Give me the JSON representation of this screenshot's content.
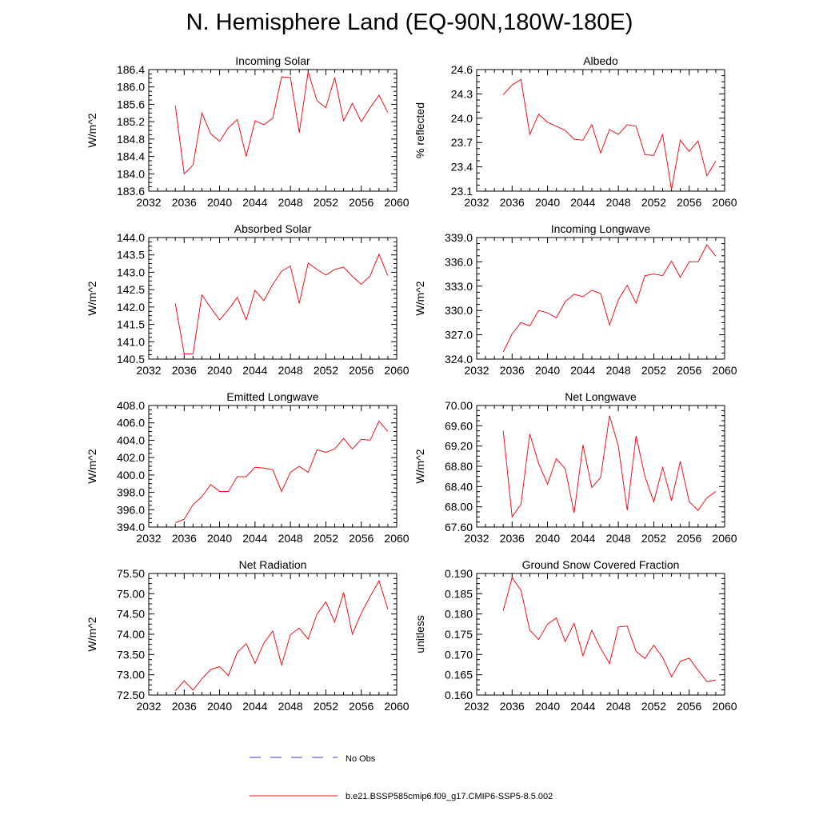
{
  "page": {
    "title": "N. Hemisphere Land (EQ-90N,180W-180E)"
  },
  "colors": {
    "model_line": "#e8141c",
    "obs_line": "#3a3ad0",
    "axis": "#000000"
  },
  "legend": {
    "items": [
      {
        "label": "No Obs",
        "style": "dashed",
        "color": "#3a3ad0"
      },
      {
        "label": "b.e21.BSSP585cmip6.f09_g17.CMIP6-SSP5-8.5.002",
        "style": "solid",
        "color": "#e8141c"
      }
    ]
  },
  "chart_data": [
    {
      "type": "line",
      "title": "Incoming Solar",
      "xlabel": "",
      "ylabel": "W/m^2",
      "xlim": [
        2032,
        2060
      ],
      "xticks": [
        2032,
        2036,
        2040,
        2044,
        2048,
        2052,
        2056,
        2060
      ],
      "ylim": [
        183.6,
        186.4
      ],
      "yticks": [
        "183.6",
        "184.0",
        "184.4",
        "184.8",
        "185.2",
        "185.6",
        "186.0",
        "186.4"
      ],
      "grid": false,
      "x": [
        2035,
        2036,
        2037,
        2038,
        2039,
        2040,
        2041,
        2042,
        2043,
        2044,
        2045,
        2046,
        2047,
        2048,
        2049,
        2050,
        2051,
        2052,
        2053,
        2054,
        2055,
        2056,
        2057,
        2058,
        2059
      ],
      "series": [
        {
          "values": [
            185.57,
            184.0,
            184.2,
            185.4,
            184.92,
            184.75,
            185.06,
            185.25,
            184.4,
            185.22,
            185.13,
            185.28,
            186.23,
            186.22,
            184.95,
            186.35,
            185.68,
            185.52,
            186.22,
            185.22,
            185.62,
            185.2,
            185.52,
            185.81,
            185.41
          ]
        }
      ]
    },
    {
      "type": "line",
      "title": "Albedo",
      "xlabel": "",
      "ylabel": "% reflected",
      "xlim": [
        2032,
        2060
      ],
      "xticks": [
        2032,
        2036,
        2040,
        2044,
        2048,
        2052,
        2056,
        2060
      ],
      "ylim": [
        23.1,
        24.6
      ],
      "yticks": [
        "23.1",
        "23.4",
        "23.7",
        "24.0",
        "24.3",
        "24.6"
      ],
      "grid": false,
      "x": [
        2035,
        2036,
        2037,
        2038,
        2039,
        2040,
        2041,
        2042,
        2043,
        2044,
        2045,
        2046,
        2047,
        2048,
        2049,
        2050,
        2051,
        2052,
        2053,
        2054,
        2055,
        2056,
        2057,
        2058,
        2059
      ],
      "series": [
        {
          "values": [
            24.29,
            24.41,
            24.48,
            23.8,
            24.05,
            23.95,
            23.9,
            23.85,
            23.74,
            23.73,
            23.92,
            23.57,
            23.86,
            23.8,
            23.92,
            23.9,
            23.55,
            23.54,
            23.8,
            23.12,
            23.73,
            23.59,
            23.72,
            23.29,
            23.47
          ]
        }
      ]
    },
    {
      "type": "line",
      "title": "Absorbed Solar",
      "xlabel": "",
      "ylabel": "W/m^2",
      "xlim": [
        2032,
        2060
      ],
      "xticks": [
        2032,
        2036,
        2040,
        2044,
        2048,
        2052,
        2056,
        2060
      ],
      "ylim": [
        140.5,
        144.0
      ],
      "yticks": [
        "140.5",
        "141.0",
        "141.5",
        "142.0",
        "142.5",
        "143.0",
        "143.5",
        "144.0"
      ],
      "grid": false,
      "x": [
        2035,
        2036,
        2037,
        2038,
        2039,
        2040,
        2041,
        2042,
        2043,
        2044,
        2045,
        2046,
        2047,
        2048,
        2049,
        2050,
        2051,
        2052,
        2053,
        2054,
        2055,
        2056,
        2057,
        2058,
        2059
      ],
      "series": [
        {
          "values": [
            142.1,
            140.65,
            140.65,
            142.35,
            141.98,
            141.63,
            141.92,
            142.28,
            141.63,
            142.48,
            142.18,
            142.65,
            143.03,
            143.18,
            142.1,
            143.27,
            143.08,
            142.92,
            143.08,
            143.15,
            142.88,
            142.65,
            142.9,
            143.52,
            142.9
          ]
        }
      ]
    },
    {
      "type": "line",
      "title": "Incoming Longwave",
      "xlabel": "",
      "ylabel": "W/m^2",
      "xlim": [
        2032,
        2060
      ],
      "xticks": [
        2032,
        2036,
        2040,
        2044,
        2048,
        2052,
        2056,
        2060
      ],
      "ylim": [
        324.0,
        339.0
      ],
      "yticks": [
        "324.0",
        "327.0",
        "330.0",
        "333.0",
        "336.0",
        "339.0"
      ],
      "grid": false,
      "x": [
        2035,
        2036,
        2037,
        2038,
        2039,
        2040,
        2041,
        2042,
        2043,
        2044,
        2045,
        2046,
        2047,
        2048,
        2049,
        2050,
        2051,
        2052,
        2053,
        2054,
        2055,
        2056,
        2057,
        2058,
        2059
      ],
      "series": [
        {
          "values": [
            324.9,
            327.1,
            328.5,
            328.1,
            330.0,
            329.7,
            329.1,
            331.1,
            332.0,
            331.7,
            332.5,
            332.1,
            328.2,
            331.3,
            333.1,
            330.9,
            334.3,
            334.5,
            334.3,
            336.1,
            334.1,
            336.0,
            336.0,
            338.1,
            336.7
          ]
        }
      ]
    },
    {
      "type": "line",
      "title": "Emitted Longwave",
      "xlabel": "",
      "ylabel": "W/m^2",
      "xlim": [
        2032,
        2060
      ],
      "xticks": [
        2032,
        2036,
        2040,
        2044,
        2048,
        2052,
        2056,
        2060
      ],
      "ylim": [
        394.0,
        408.0
      ],
      "yticks": [
        "394.0",
        "396.0",
        "398.0",
        "400.0",
        "402.0",
        "404.0",
        "406.0",
        "408.0"
      ],
      "grid": false,
      "x": [
        2035,
        2036,
        2037,
        2038,
        2039,
        2040,
        2041,
        2042,
        2043,
        2044,
        2045,
        2046,
        2047,
        2048,
        2049,
        2050,
        2051,
        2052,
        2053,
        2054,
        2055,
        2056,
        2057,
        2058,
        2059
      ],
      "series": [
        {
          "values": [
            394.5,
            394.9,
            396.6,
            397.5,
            398.9,
            398.1,
            398.1,
            399.8,
            399.8,
            400.9,
            400.8,
            400.6,
            398.1,
            400.3,
            401.0,
            400.3,
            402.9,
            402.6,
            403.0,
            404.2,
            403.0,
            404.1,
            404.0,
            406.2,
            405.0
          ]
        }
      ]
    },
    {
      "type": "line",
      "title": "Net Longwave",
      "xlabel": "",
      "ylabel": "W/m^2",
      "xlim": [
        2032,
        2060
      ],
      "xticks": [
        2032,
        2036,
        2040,
        2044,
        2048,
        2052,
        2056,
        2060
      ],
      "ylim": [
        67.6,
        70.0
      ],
      "yticks": [
        "67.60",
        "68.00",
        "68.40",
        "68.80",
        "69.20",
        "69.60",
        "70.00"
      ],
      "grid": false,
      "x": [
        2035,
        2036,
        2037,
        2038,
        2039,
        2040,
        2041,
        2042,
        2043,
        2044,
        2045,
        2046,
        2047,
        2048,
        2049,
        2050,
        2051,
        2052,
        2053,
        2054,
        2055,
        2056,
        2057,
        2058,
        2059
      ],
      "series": [
        {
          "values": [
            69.5,
            67.8,
            68.05,
            69.44,
            68.85,
            68.45,
            68.95,
            68.75,
            67.88,
            69.22,
            68.38,
            68.58,
            69.8,
            69.2,
            67.93,
            69.4,
            68.6,
            68.1,
            68.78,
            68.12,
            68.9,
            68.1,
            67.93,
            68.18,
            68.3
          ]
        }
      ]
    },
    {
      "type": "line",
      "title": "Net Radiation",
      "xlabel": "",
      "ylabel": "W/m^2",
      "xlim": [
        2032,
        2060
      ],
      "xticks": [
        2032,
        2036,
        2040,
        2044,
        2048,
        2052,
        2056,
        2060
      ],
      "ylim": [
        72.5,
        75.5
      ],
      "yticks": [
        "72.50",
        "73.00",
        "73.50",
        "74.00",
        "74.50",
        "75.00",
        "75.50"
      ],
      "grid": false,
      "x": [
        2035,
        2036,
        2037,
        2038,
        2039,
        2040,
        2041,
        2042,
        2043,
        2044,
        2045,
        2046,
        2047,
        2048,
        2049,
        2050,
        2051,
        2052,
        2053,
        2054,
        2055,
        2056,
        2057,
        2058,
        2059
      ],
      "series": [
        {
          "values": [
            72.6,
            72.85,
            72.62,
            72.9,
            73.13,
            73.2,
            72.98,
            73.55,
            73.77,
            73.28,
            73.78,
            74.08,
            73.24,
            73.99,
            74.15,
            73.88,
            74.5,
            74.8,
            74.3,
            75.03,
            74.0,
            74.52,
            74.93,
            75.32,
            74.62
          ]
        }
      ]
    },
    {
      "type": "line",
      "title": "Ground Snow Covered Fraction",
      "xlabel": "",
      "ylabel": "unitless",
      "xlim": [
        2032,
        2060
      ],
      "xticks": [
        2032,
        2036,
        2040,
        2044,
        2048,
        2052,
        2056,
        2060
      ],
      "ylim": [
        0.16,
        0.19
      ],
      "yticks": [
        "0.160",
        "0.165",
        "0.170",
        "0.175",
        "0.180",
        "0.185",
        "0.190"
      ],
      "grid": false,
      "x": [
        2035,
        2036,
        2037,
        2038,
        2039,
        2040,
        2041,
        2042,
        2043,
        2044,
        2045,
        2046,
        2047,
        2048,
        2049,
        2050,
        2051,
        2052,
        2053,
        2054,
        2055,
        2056,
        2057,
        2058,
        2059
      ],
      "series": [
        {
          "values": [
            0.1808,
            0.189,
            0.1858,
            0.176,
            0.1737,
            0.1775,
            0.179,
            0.1732,
            0.1777,
            0.1697,
            0.176,
            0.1715,
            0.1678,
            0.1768,
            0.177,
            0.1708,
            0.169,
            0.1723,
            0.1693,
            0.1645,
            0.1683,
            0.1691,
            0.1661,
            0.1633,
            0.1637
          ]
        }
      ]
    }
  ]
}
